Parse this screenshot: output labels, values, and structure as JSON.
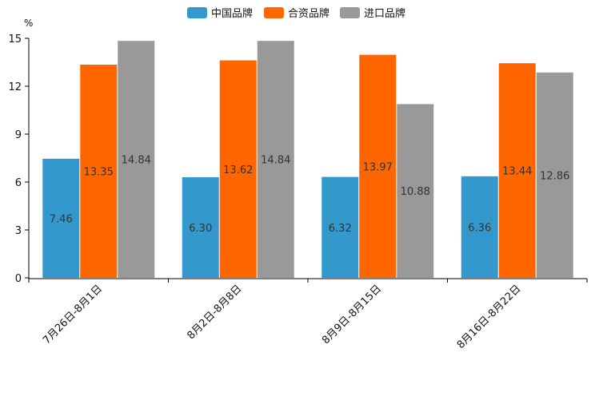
{
  "chart_data": {
    "type": "bar",
    "unit_label": "%",
    "categories": [
      "7月26日-8月1日",
      "8月2日-8月8日",
      "8月9日-8月15日",
      "8月16日-8月22日"
    ],
    "series": [
      {
        "name": "中国品牌",
        "color": "#3399cc",
        "values": [
          7.46,
          6.3,
          6.32,
          6.36
        ],
        "labels": [
          "7.46",
          "6.30",
          "6.32",
          "6.36"
        ]
      },
      {
        "name": "合资品牌",
        "color": "#ff6600",
        "values": [
          13.35,
          13.62,
          13.97,
          13.44
        ],
        "labels": [
          "13.35",
          "13.62",
          "13.97",
          "13.44"
        ]
      },
      {
        "name": "进口品牌",
        "color": "#999999",
        "values": [
          14.84,
          14.84,
          10.88,
          12.86
        ],
        "labels": [
          "14.84",
          "14.84",
          "10.88",
          "12.86"
        ]
      }
    ],
    "ylim": [
      0,
      15
    ],
    "yticks": [
      "0",
      "3",
      "6",
      "9",
      "12",
      "15"
    ],
    "legend": "top-center",
    "grid": false
  }
}
